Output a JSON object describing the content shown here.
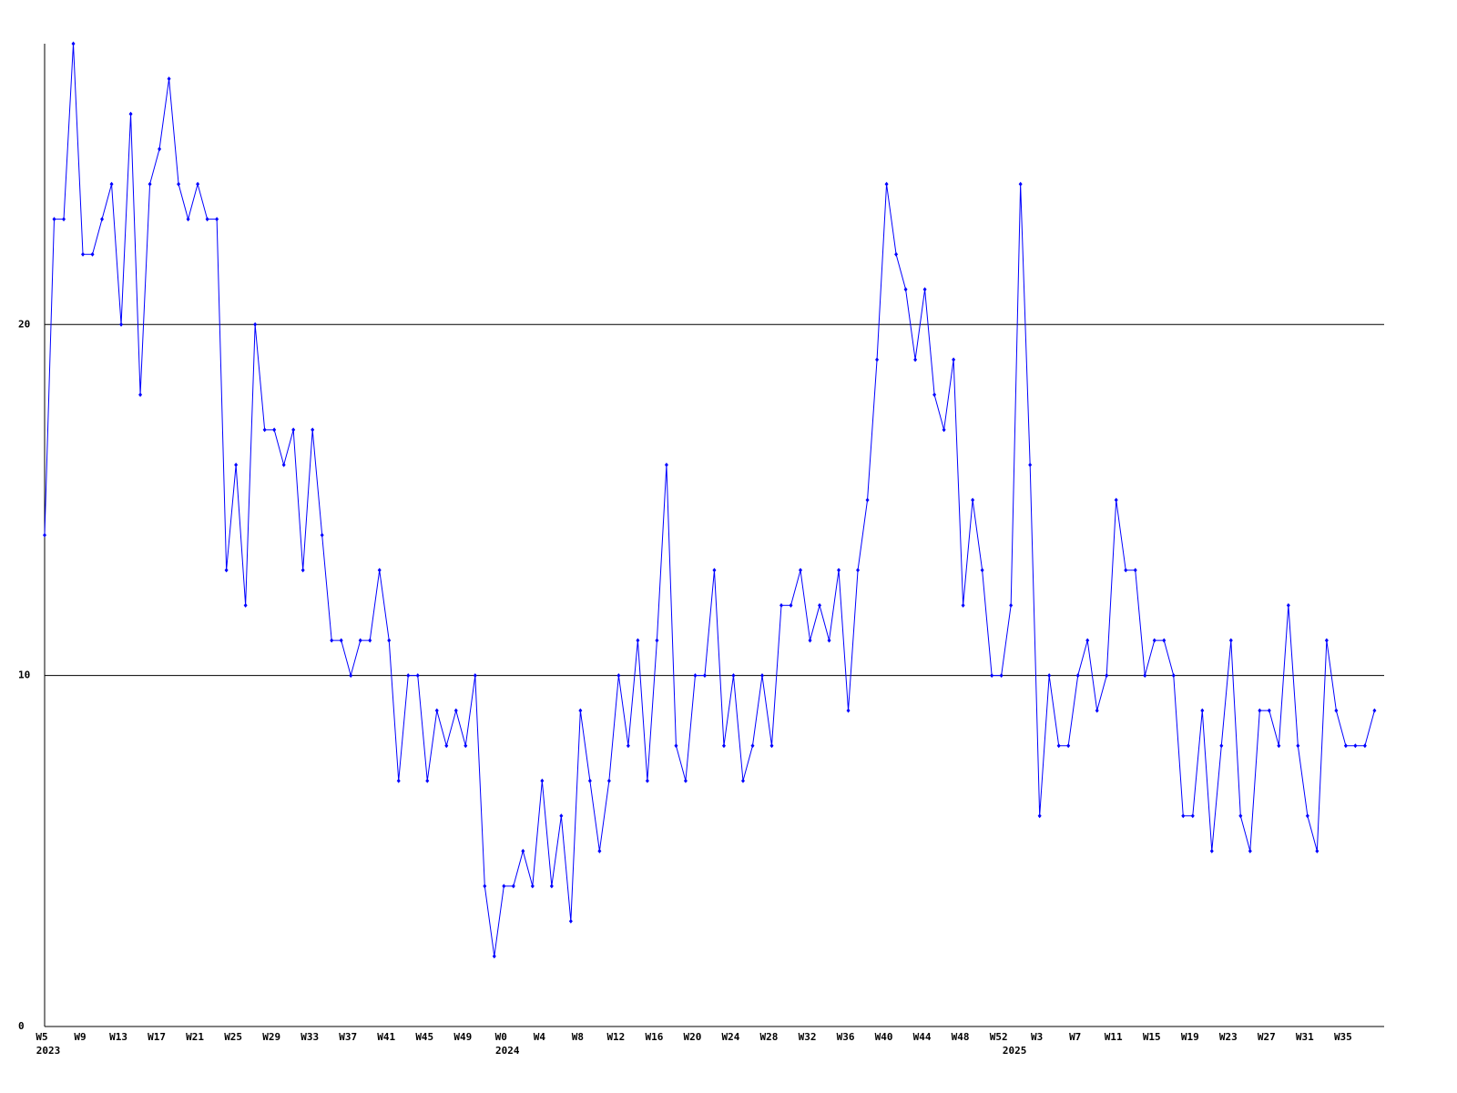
{
  "chart_data": {
    "type": "line",
    "categories": [
      "W5",
      null,
      null,
      null,
      "W9",
      null,
      null,
      null,
      "W13",
      null,
      null,
      null,
      "W17",
      null,
      null,
      null,
      "W21",
      null,
      null,
      null,
      "W25",
      null,
      null,
      null,
      "W29",
      null,
      null,
      null,
      "W33",
      null,
      null,
      null,
      "W37",
      null,
      null,
      null,
      "W41",
      null,
      null,
      null,
      "W45",
      null,
      null,
      null,
      "W49",
      null,
      null,
      null,
      "W0",
      null,
      null,
      null,
      "W4",
      null,
      null,
      null,
      "W8",
      null,
      null,
      null,
      "W12",
      null,
      null,
      null,
      "W16",
      null,
      null,
      null,
      "W20",
      null,
      null,
      null,
      "W24",
      null,
      null,
      null,
      "W28",
      null,
      null,
      null,
      "W32",
      null,
      null,
      null,
      "W36",
      null,
      null,
      null,
      "W40",
      null,
      null,
      null,
      "W44",
      null,
      null,
      null,
      "W48",
      null,
      null,
      null,
      "W52",
      null,
      null,
      null,
      "W3",
      null,
      null,
      null,
      "W7",
      null,
      null,
      null,
      "W11",
      null,
      null,
      null,
      "W15",
      null,
      null,
      null,
      "W19",
      null,
      null,
      null,
      "W23",
      null,
      null,
      null,
      "W27",
      null,
      null,
      null,
      "W31",
      null,
      null,
      null,
      "W35",
      null,
      null,
      null
    ],
    "years": [
      "2023",
      null,
      null,
      null,
      null,
      null,
      null,
      null,
      null,
      null,
      null,
      null,
      null,
      null,
      null,
      null,
      null,
      null,
      null,
      null,
      null,
      null,
      null,
      null,
      null,
      null,
      null,
      null,
      null,
      null,
      null,
      null,
      null,
      null,
      null,
      null,
      null,
      null,
      null,
      null,
      null,
      null,
      null,
      null,
      null,
      null,
      null,
      null,
      "2024",
      null,
      null,
      null,
      null,
      null,
      null,
      null,
      null,
      null,
      null,
      null,
      null,
      null,
      null,
      null,
      null,
      null,
      null,
      null,
      null,
      null,
      null,
      null,
      null,
      null,
      null,
      null,
      null,
      null,
      null,
      null,
      null,
      null,
      null,
      null,
      null,
      null,
      null,
      null,
      null,
      null,
      null,
      null,
      null,
      null,
      null,
      null,
      null,
      null,
      null,
      null,
      null,
      "2025",
      null,
      null,
      null,
      null,
      null,
      null,
      null,
      null,
      null,
      null,
      null,
      null,
      null,
      null,
      null,
      null,
      null,
      null,
      null,
      null,
      null,
      null,
      null,
      null,
      null,
      null,
      null,
      null,
      null,
      null,
      null,
      null,
      null,
      null,
      null,
      null,
      null,
      null
    ],
    "values": [
      14,
      23,
      23,
      28,
      22,
      22,
      23,
      24,
      20,
      26,
      18,
      24,
      25,
      27,
      24,
      23,
      24,
      23,
      23,
      13,
      16,
      12,
      20,
      17,
      17,
      16,
      17,
      13,
      17,
      14,
      11,
      11,
      10,
      11,
      11,
      13,
      11,
      7,
      10,
      10,
      7,
      9,
      8,
      9,
      8,
      10,
      4,
      2,
      4,
      4,
      5,
      4,
      7,
      4,
      6,
      3,
      9,
      7,
      5,
      7,
      10,
      8,
      11,
      7,
      11,
      16,
      8,
      7,
      10,
      10,
      13,
      8,
      10,
      7,
      8,
      10,
      8,
      12,
      12,
      13,
      11,
      12,
      11,
      13,
      9,
      13,
      15,
      19,
      24,
      22,
      21,
      19,
      21,
      18,
      17,
      19,
      12,
      15,
      13,
      10,
      10,
      12,
      24,
      16,
      6,
      10,
      8,
      8,
      10,
      11,
      9,
      10,
      15,
      13,
      13,
      10,
      11,
      11,
      10,
      6,
      6,
      9,
      5,
      8,
      11,
      6,
      5,
      9,
      9,
      8,
      12,
      8,
      6,
      5,
      11,
      9,
      8,
      8,
      8,
      9
    ],
    "color": "#0000ff",
    "ylim": [
      0,
      28
    ],
    "yticks": [
      0,
      10,
      20
    ],
    "grid": true
  }
}
